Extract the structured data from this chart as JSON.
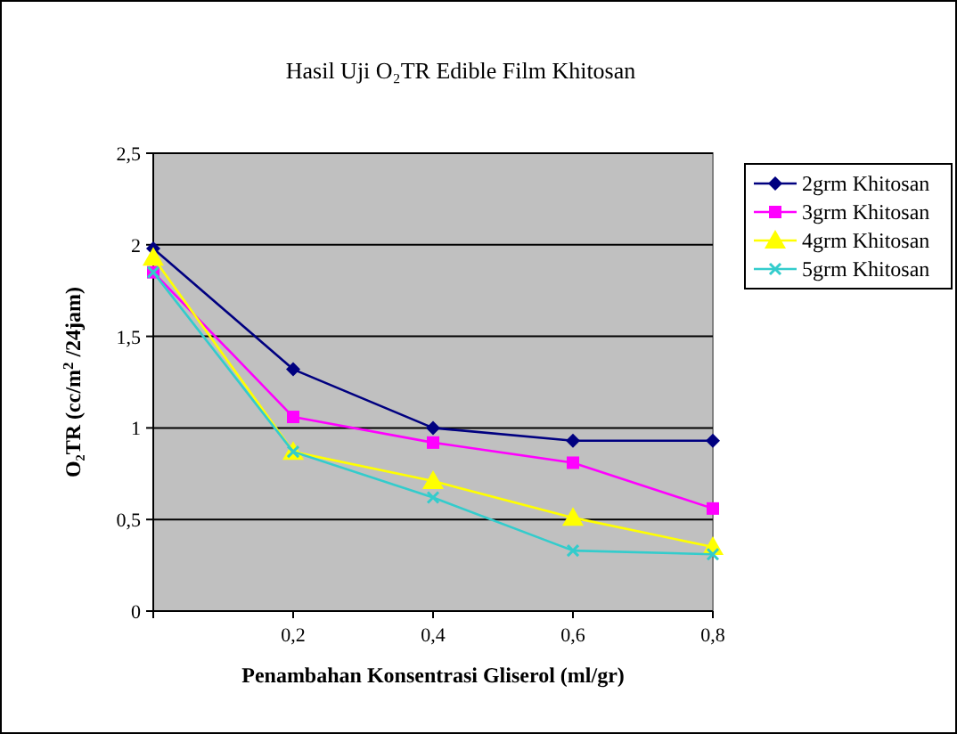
{
  "chart_data": {
    "type": "line",
    "title": "Hasil Uji O₂TR Edible Film Khitosan",
    "xlabel": "Penambahan Konsentrasi Gliserol (ml/gr)",
    "ylabel": "O₂TR (cc/m$^{2}$/24jam)",
    "x": [
      0,
      0.2,
      0.4,
      0.6,
      0.8
    ],
    "series": [
      {
        "name": "2grm Khitosan",
        "color": "#000080",
        "marker": "diamond",
        "values": [
          1.98,
          1.32,
          1.0,
          0.93,
          0.93
        ]
      },
      {
        "name": "3grm Khitosan",
        "color": "#ff00ff",
        "marker": "square",
        "values": [
          1.85,
          1.06,
          0.92,
          0.81,
          0.56
        ]
      },
      {
        "name": "4grm Khitosan",
        "color": "#ffff00",
        "marker": "triangle",
        "values": [
          1.93,
          0.87,
          0.71,
          0.51,
          0.35
        ]
      },
      {
        "name": "5grm Khitosan",
        "color": "#33cccc",
        "marker": "cross",
        "values": [
          1.85,
          0.87,
          0.62,
          0.33,
          0.31
        ]
      }
    ],
    "xlim": [
      0,
      0.8
    ],
    "xticks": [
      {
        "value": 0,
        "label": null
      },
      {
        "value": 0.2,
        "label": "0,2"
      },
      {
        "value": 0.4,
        "label": "0,4"
      },
      {
        "value": 0.6,
        "label": "0,6"
      },
      {
        "value": 0.8,
        "label": "0,8"
      }
    ],
    "ylim": [
      0,
      2.5
    ],
    "yticks": [
      {
        "value": 0,
        "label": "0"
      },
      {
        "value": 0.5,
        "label": "0,5"
      },
      {
        "value": 1,
        "label": "1"
      },
      {
        "value": 1.5,
        "label": "1,5"
      },
      {
        "value": 2,
        "label": "2"
      },
      {
        "value": 2.5,
        "label": "2,5"
      }
    ],
    "grid": "y",
    "legend": "right"
  }
}
